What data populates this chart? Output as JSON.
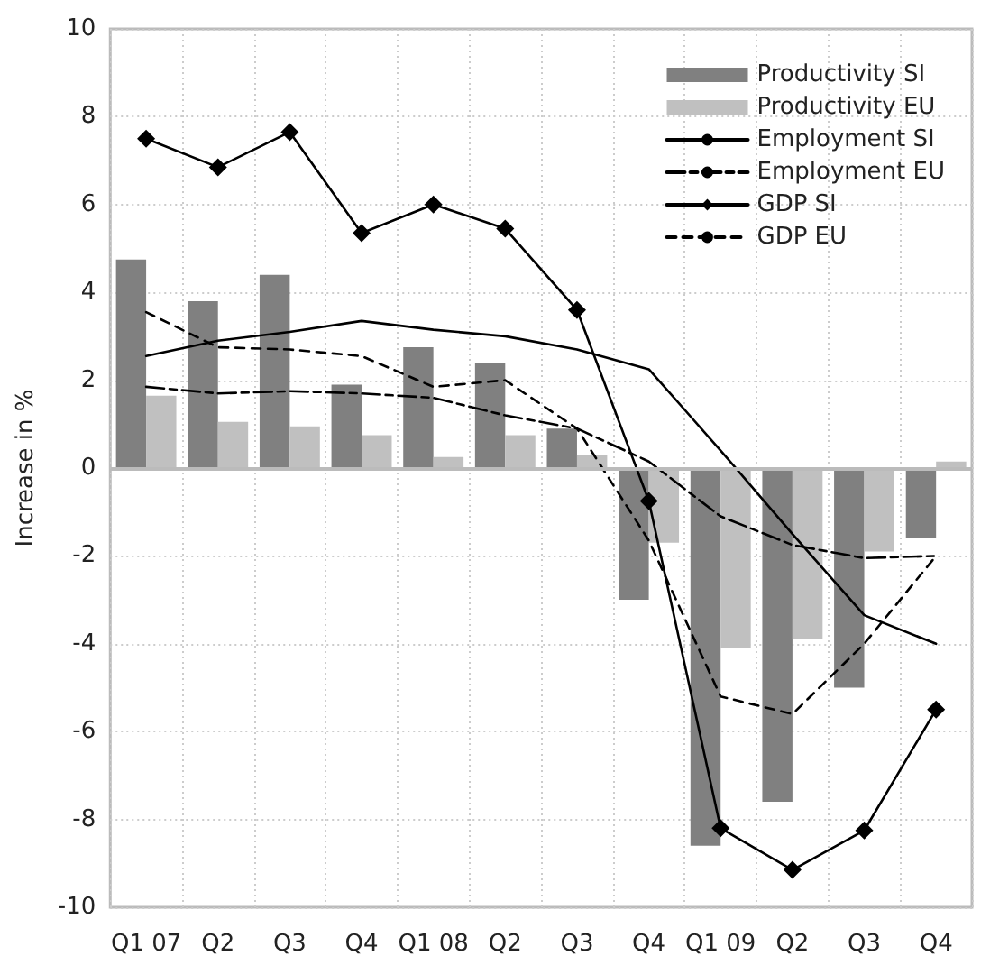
{
  "chart_data": {
    "type": "bar",
    "ylabel": "Increase in %",
    "categories": [
      "Q1 07",
      "Q2",
      "Q3",
      "Q4",
      "Q1 08",
      "Q2",
      "Q3",
      "Q4",
      "Q1 09",
      "Q2",
      "Q3",
      "Q4"
    ],
    "series": [
      {
        "name": "Productivity SI",
        "color": "#808080",
        "values": [
          4.75,
          3.8,
          4.4,
          1.9,
          2.75,
          2.4,
          0.9,
          -3.0,
          -8.6,
          -7.6,
          -5.0,
          -1.6
        ]
      },
      {
        "name": "Productivity EU",
        "color": "#c0c0c0",
        "values": [
          1.65,
          1.05,
          0.95,
          0.75,
          0.25,
          0.75,
          0.3,
          -1.7,
          -4.1,
          -3.9,
          -1.9,
          0.15
        ]
      },
      {
        "name": "Employment SI",
        "type": "line",
        "color": "#000000",
        "line_style": "solid",
        "values": [
          2.55,
          2.9,
          3.1,
          3.35,
          3.15,
          3.0,
          2.7,
          2.25,
          0.4,
          -1.5,
          -3.35,
          -4.0
        ]
      },
      {
        "name": "Employment EU",
        "type": "line",
        "color": "#000000",
        "line_style": "dashdot",
        "values": [
          1.85,
          1.7,
          1.75,
          1.7,
          1.6,
          1.2,
          0.9,
          0.15,
          -1.1,
          -1.75,
          -2.05,
          -2.0
        ]
      },
      {
        "name": "GDP SI",
        "type": "line",
        "color": "#000000",
        "line_style": "solid",
        "marker": "diamond",
        "values": [
          7.5,
          6.85,
          7.65,
          5.35,
          6.0,
          5.45,
          3.6,
          -0.75,
          -8.2,
          -9.15,
          -8.25,
          -5.5
        ]
      },
      {
        "name": "GDP EU",
        "type": "line",
        "color": "#000000",
        "line_style": "dashed",
        "values": [
          3.55,
          2.75,
          2.7,
          2.55,
          1.85,
          2.0,
          0.9,
          -1.65,
          -5.2,
          -5.6,
          -4.0,
          -2.0
        ]
      }
    ],
    "ylim": [
      -10,
      10
    ],
    "yticks": [
      -10,
      -8,
      -6,
      -4,
      -2,
      0,
      2,
      4,
      6,
      8,
      10
    ],
    "grid": true,
    "legend": "top right",
    "marker": "none"
  }
}
